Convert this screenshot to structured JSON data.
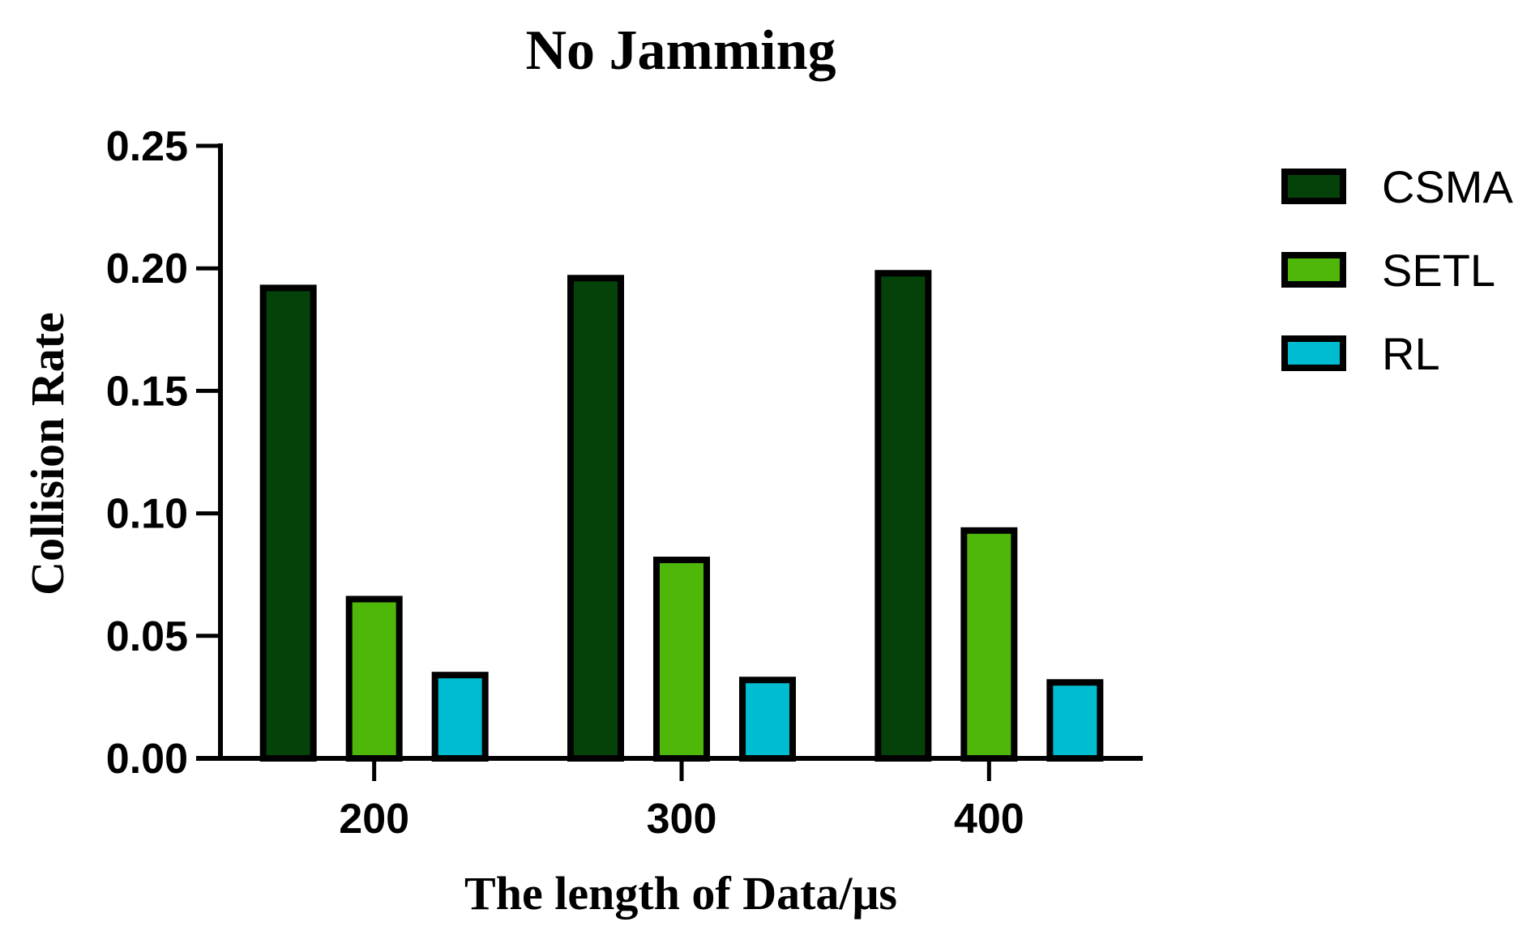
{
  "chart_data": {
    "type": "bar",
    "title": "No Jamming",
    "xlabel": "The length of Data/μs",
    "ylabel": "Collision Rate",
    "categories": [
      "200",
      "300",
      "400"
    ],
    "series": [
      {
        "name": "CSMA",
        "color": "#04420a",
        "values": [
          0.192,
          0.196,
          0.198
        ]
      },
      {
        "name": "SETL",
        "color": "#4fb70a",
        "values": [
          0.065,
          0.081,
          0.093
        ]
      },
      {
        "name": "RL",
        "color": "#00bcd0",
        "values": [
          0.034,
          0.032,
          0.031
        ]
      }
    ],
    "ylim": [
      0,
      0.25
    ],
    "yticks": [
      "0.00",
      "0.05",
      "0.10",
      "0.15",
      "0.20",
      "0.25"
    ],
    "grid": false,
    "legend_position": "top-right"
  }
}
